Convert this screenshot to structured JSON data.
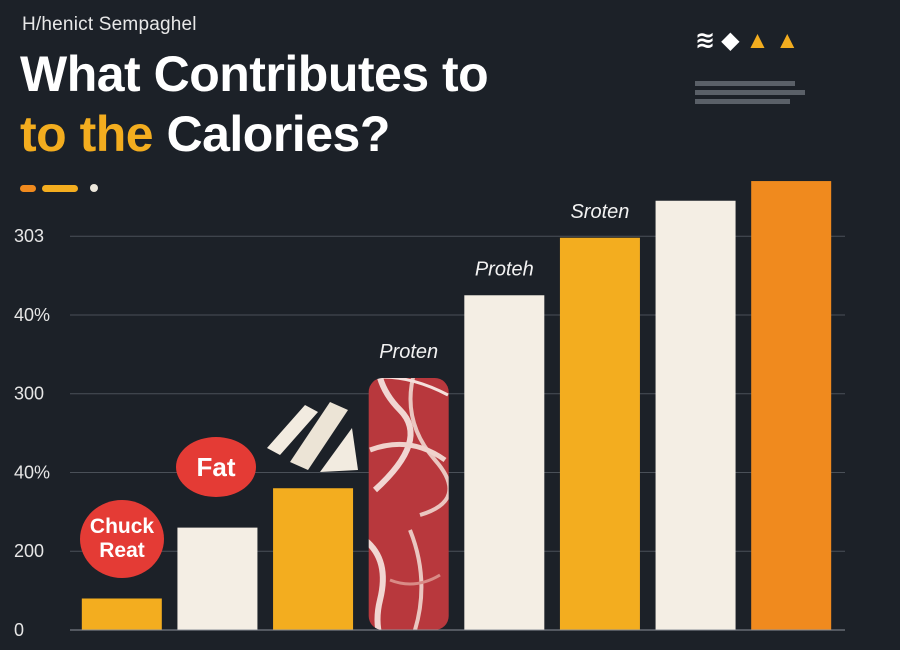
{
  "header": {
    "kicker": "H/henict Sempaghel",
    "title_line1": "What Contributes to",
    "title_line2_accent": "to the",
    "title_line2_rest": "Calories?"
  },
  "colors": {
    "background": "#1c2128",
    "accent_yellow": "#f3ad1f",
    "accent_orange": "#f08a1e",
    "cream": "#f4eee4",
    "badge_red": "#e43b35"
  },
  "logo_icon": "brand-mark-icon",
  "chart_data": {
    "type": "bar",
    "title": "What Contributes to the Calories?",
    "xlabel": "",
    "ylabel": "",
    "ylim": [
      0,
      5.65
    ],
    "yticks": [
      {
        "value": 0,
        "label": "0"
      },
      {
        "value": 1,
        "label": "200"
      },
      {
        "value": 2,
        "label": "40%"
      },
      {
        "value": 3,
        "label": "300"
      },
      {
        "value": 4,
        "label": "40%"
      },
      {
        "value": 5,
        "label": "303"
      }
    ],
    "bars": [
      {
        "value": 0.4,
        "color": "#f3ad1f",
        "label": ""
      },
      {
        "value": 1.3,
        "color": "#f4eee4",
        "label": ""
      },
      {
        "value": 1.8,
        "color": "#f3ad1f",
        "label": ""
      },
      {
        "value": 3.2,
        "color": "#b8383d",
        "label": "Proten",
        "pattern": "meat"
      },
      {
        "value": 4.25,
        "color": "#f4eee4",
        "label": "Proteh"
      },
      {
        "value": 4.98,
        "color": "#f3ad1f",
        "label": "Sroten"
      },
      {
        "value": 5.45,
        "color": "#f4eee4",
        "label": ""
      },
      {
        "value": 5.7,
        "color": "#f08a1e",
        "label": ""
      }
    ],
    "badges": [
      {
        "text_line1": "Chuck",
        "text_line2": "Reat"
      },
      {
        "text_line1": "Fat"
      }
    ]
  }
}
